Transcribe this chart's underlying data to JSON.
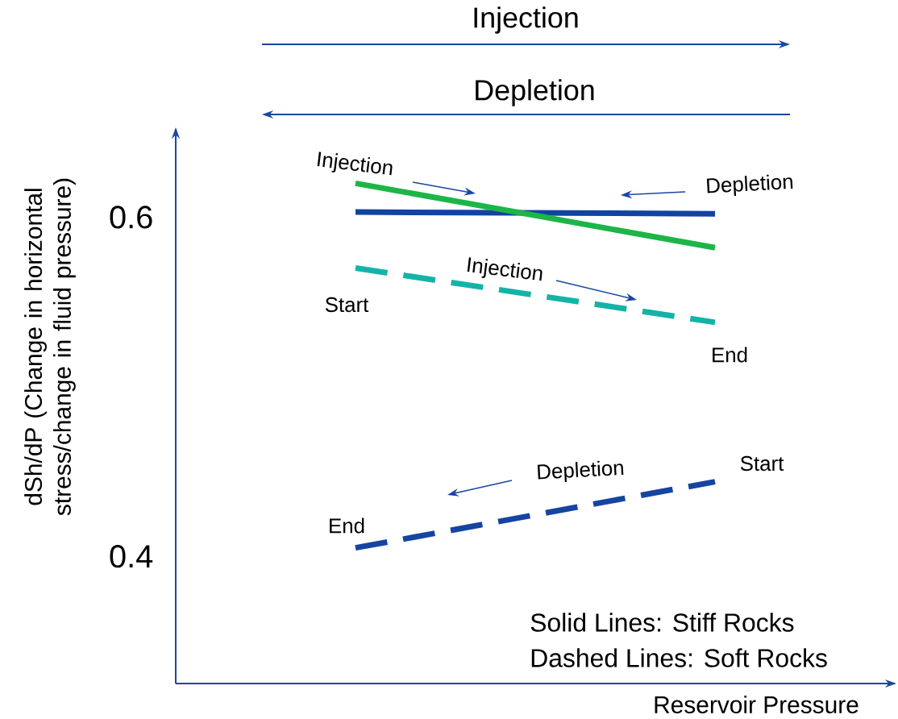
{
  "chart_data": {
    "type": "line",
    "ylabel": "dSh/dP (Change in horizontal stress/change in fluid pressure)",
    "xlabel": "Reservoir Pressure",
    "categories": [
      null,
      null
    ],
    "ylim": [
      0.325,
      0.652
    ],
    "yticks": [
      0.6,
      0.4
    ],
    "grid": false,
    "series": [
      {
        "color": "#0f45a0",
        "values": [
          0.603,
          0.602
        ],
        "line_style": "solid"
      },
      {
        "color": "#1db548",
        "values": [
          0.62,
          0.582
        ],
        "line_style": "solid"
      },
      {
        "color": "#14b3a8",
        "values": [
          0.57,
          0.538
        ],
        "line_style": "dashed"
      },
      {
        "color": "#1545a0",
        "values": [
          0.405,
          0.444
        ],
        "line_style": "dashed"
      }
    ],
    "annotations": [
      "Injection",
      "Depletion",
      "Injection",
      "Depletion",
      "Start",
      "Injection",
      "End",
      "Depletion",
      "Start",
      "End",
      "Solid Lines: Stiff Rocks",
      "Dashed Lines: Soft Rocks"
    ]
  }
}
